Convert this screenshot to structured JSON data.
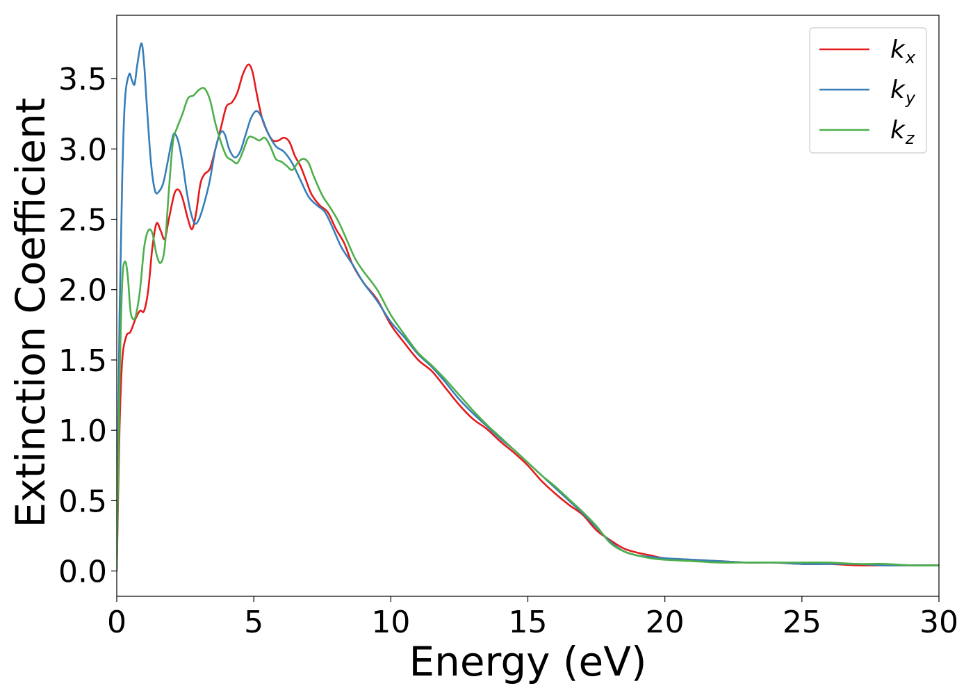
{
  "chart_data": {
    "type": "line",
    "title": "",
    "xlabel": "Energy (eV)",
    "ylabel": "Extinction Coefficient",
    "xlim": [
      0,
      30
    ],
    "ylim": [
      -0.18,
      3.95
    ],
    "xticks": [
      0,
      5,
      10,
      15,
      20,
      25,
      30
    ],
    "xtick_labels": [
      "0",
      "5",
      "10",
      "15",
      "20",
      "25",
      "30"
    ],
    "yticks": [
      0.0,
      0.5,
      1.0,
      1.5,
      2.0,
      2.5,
      3.0,
      3.5
    ],
    "ytick_labels": [
      "0.0",
      "0.5",
      "1.0",
      "1.5",
      "2.0",
      "2.5",
      "3.0",
      "3.5"
    ],
    "grid": false,
    "legend_position": "top-right",
    "series": [
      {
        "name": "k_x",
        "legend_main": "k",
        "legend_sub": "x",
        "color": "#e41a1c",
        "points": [
          [
            0,
            0
          ],
          [
            0.1,
            1.0
          ],
          [
            0.2,
            1.5
          ],
          [
            0.35,
            1.67
          ],
          [
            0.5,
            1.7
          ],
          [
            0.7,
            1.8
          ],
          [
            0.85,
            1.85
          ],
          [
            1.0,
            1.85
          ],
          [
            1.15,
            2.0
          ],
          [
            1.3,
            2.3
          ],
          [
            1.45,
            2.47
          ],
          [
            1.6,
            2.42
          ],
          [
            1.75,
            2.36
          ],
          [
            1.9,
            2.5
          ],
          [
            2.1,
            2.68
          ],
          [
            2.25,
            2.71
          ],
          [
            2.4,
            2.65
          ],
          [
            2.6,
            2.5
          ],
          [
            2.75,
            2.43
          ],
          [
            2.9,
            2.55
          ],
          [
            3.05,
            2.75
          ],
          [
            3.2,
            2.82
          ],
          [
            3.4,
            2.86
          ],
          [
            3.6,
            3.0
          ],
          [
            3.8,
            3.15
          ],
          [
            4.0,
            3.3
          ],
          [
            4.2,
            3.33
          ],
          [
            4.4,
            3.4
          ],
          [
            4.6,
            3.53
          ],
          [
            4.8,
            3.6
          ],
          [
            4.95,
            3.55
          ],
          [
            5.1,
            3.4
          ],
          [
            5.3,
            3.22
          ],
          [
            5.5,
            3.12
          ],
          [
            5.7,
            3.06
          ],
          [
            5.9,
            3.06
          ],
          [
            6.1,
            3.08
          ],
          [
            6.3,
            3.05
          ],
          [
            6.5,
            2.95
          ],
          [
            6.7,
            2.88
          ],
          [
            6.9,
            2.78
          ],
          [
            7.1,
            2.68
          ],
          [
            7.4,
            2.6
          ],
          [
            7.7,
            2.55
          ],
          [
            8.0,
            2.43
          ],
          [
            8.3,
            2.33
          ],
          [
            8.6,
            2.18
          ],
          [
            9.0,
            2.05
          ],
          [
            9.5,
            1.93
          ],
          [
            10.0,
            1.75
          ],
          [
            10.5,
            1.62
          ],
          [
            11.0,
            1.5
          ],
          [
            11.5,
            1.42
          ],
          [
            12.0,
            1.3
          ],
          [
            12.5,
            1.18
          ],
          [
            13.0,
            1.08
          ],
          [
            13.5,
            1.01
          ],
          [
            14.0,
            0.92
          ],
          [
            14.5,
            0.84
          ],
          [
            15.0,
            0.75
          ],
          [
            15.5,
            0.64
          ],
          [
            16.0,
            0.55
          ],
          [
            16.5,
            0.47
          ],
          [
            17.0,
            0.4
          ],
          [
            17.5,
            0.29
          ],
          [
            18.0,
            0.22
          ],
          [
            18.5,
            0.16
          ],
          [
            19.0,
            0.13
          ],
          [
            19.5,
            0.11
          ],
          [
            20.0,
            0.09
          ],
          [
            21.0,
            0.08
          ],
          [
            22.0,
            0.07
          ],
          [
            23.0,
            0.06
          ],
          [
            24.0,
            0.06
          ],
          [
            25.0,
            0.05
          ],
          [
            26.0,
            0.05
          ],
          [
            27.0,
            0.04
          ],
          [
            28.0,
            0.04
          ],
          [
            29.0,
            0.04
          ],
          [
            30.0,
            0.04
          ]
        ]
      },
      {
        "name": "k_y",
        "legend_main": "k",
        "legend_sub": "y",
        "color": "#377eb8",
        "points": [
          [
            0,
            0
          ],
          [
            0.1,
            1.8
          ],
          [
            0.2,
            2.8
          ],
          [
            0.3,
            3.35
          ],
          [
            0.45,
            3.53
          ],
          [
            0.55,
            3.49
          ],
          [
            0.65,
            3.46
          ],
          [
            0.75,
            3.6
          ],
          [
            0.9,
            3.75
          ],
          [
            1.0,
            3.6
          ],
          [
            1.1,
            3.3
          ],
          [
            1.25,
            2.9
          ],
          [
            1.4,
            2.7
          ],
          [
            1.55,
            2.7
          ],
          [
            1.7,
            2.76
          ],
          [
            1.85,
            2.9
          ],
          [
            2.0,
            3.05
          ],
          [
            2.1,
            3.11
          ],
          [
            2.25,
            3.05
          ],
          [
            2.4,
            2.9
          ],
          [
            2.55,
            2.7
          ],
          [
            2.7,
            2.55
          ],
          [
            2.85,
            2.47
          ],
          [
            3.0,
            2.5
          ],
          [
            3.2,
            2.62
          ],
          [
            3.4,
            2.78
          ],
          [
            3.6,
            3.0
          ],
          [
            3.8,
            3.12
          ],
          [
            3.95,
            3.1
          ],
          [
            4.1,
            3.0
          ],
          [
            4.3,
            2.94
          ],
          [
            4.5,
            2.98
          ],
          [
            4.7,
            3.1
          ],
          [
            4.9,
            3.22
          ],
          [
            5.1,
            3.27
          ],
          [
            5.3,
            3.22
          ],
          [
            5.5,
            3.12
          ],
          [
            5.8,
            3.02
          ],
          [
            6.1,
            2.98
          ],
          [
            6.4,
            2.9
          ],
          [
            6.7,
            2.78
          ],
          [
            7.0,
            2.66
          ],
          [
            7.3,
            2.6
          ],
          [
            7.6,
            2.55
          ],
          [
            7.9,
            2.43
          ],
          [
            8.2,
            2.3
          ],
          [
            8.6,
            2.18
          ],
          [
            9.0,
            2.05
          ],
          [
            9.5,
            1.92
          ],
          [
            10.0,
            1.77
          ],
          [
            10.5,
            1.66
          ],
          [
            11.0,
            1.54
          ],
          [
            11.5,
            1.45
          ],
          [
            12.0,
            1.34
          ],
          [
            12.5,
            1.22
          ],
          [
            13.0,
            1.12
          ],
          [
            13.5,
            1.03
          ],
          [
            14.0,
            0.94
          ],
          [
            14.5,
            0.86
          ],
          [
            15.0,
            0.77
          ],
          [
            15.5,
            0.68
          ],
          [
            16.0,
            0.59
          ],
          [
            16.5,
            0.5
          ],
          [
            17.0,
            0.41
          ],
          [
            17.5,
            0.31
          ],
          [
            18.0,
            0.21
          ],
          [
            18.5,
            0.14
          ],
          [
            19.0,
            0.11
          ],
          [
            19.5,
            0.1
          ],
          [
            20.0,
            0.09
          ],
          [
            21.0,
            0.08
          ],
          [
            22.0,
            0.07
          ],
          [
            23.0,
            0.06
          ],
          [
            24.0,
            0.06
          ],
          [
            25.0,
            0.05
          ],
          [
            26.0,
            0.05
          ],
          [
            27.0,
            0.05
          ],
          [
            28.0,
            0.04
          ],
          [
            29.0,
            0.04
          ],
          [
            30.0,
            0.04
          ]
        ]
      },
      {
        "name": "k_z",
        "legend_main": "k",
        "legend_sub": "z",
        "color": "#4daf4a",
        "points": [
          [
            0,
            0
          ],
          [
            0.1,
            1.3
          ],
          [
            0.2,
            2.05
          ],
          [
            0.3,
            2.2
          ],
          [
            0.4,
            2.1
          ],
          [
            0.5,
            1.85
          ],
          [
            0.6,
            1.79
          ],
          [
            0.7,
            1.82
          ],
          [
            0.85,
            2.0
          ],
          [
            1.0,
            2.3
          ],
          [
            1.15,
            2.42
          ],
          [
            1.3,
            2.4
          ],
          [
            1.45,
            2.25
          ],
          [
            1.6,
            2.19
          ],
          [
            1.75,
            2.3
          ],
          [
            1.9,
            2.7
          ],
          [
            2.05,
            3.05
          ],
          [
            2.2,
            3.15
          ],
          [
            2.4,
            3.25
          ],
          [
            2.6,
            3.36
          ],
          [
            2.8,
            3.38
          ],
          [
            3.0,
            3.42
          ],
          [
            3.2,
            3.43
          ],
          [
            3.4,
            3.35
          ],
          [
            3.6,
            3.18
          ],
          [
            3.8,
            3.05
          ],
          [
            4.0,
            2.95
          ],
          [
            4.2,
            2.92
          ],
          [
            4.4,
            2.9
          ],
          [
            4.6,
            2.98
          ],
          [
            4.8,
            3.08
          ],
          [
            5.0,
            3.08
          ],
          [
            5.2,
            3.06
          ],
          [
            5.4,
            3.08
          ],
          [
            5.6,
            3.02
          ],
          [
            5.8,
            2.93
          ],
          [
            6.0,
            2.91
          ],
          [
            6.2,
            2.88
          ],
          [
            6.4,
            2.85
          ],
          [
            6.6,
            2.9
          ],
          [
            6.8,
            2.93
          ],
          [
            7.0,
            2.9
          ],
          [
            7.2,
            2.8
          ],
          [
            7.5,
            2.67
          ],
          [
            7.8,
            2.58
          ],
          [
            8.1,
            2.48
          ],
          [
            8.4,
            2.35
          ],
          [
            8.7,
            2.22
          ],
          [
            9.0,
            2.13
          ],
          [
            9.5,
            2.0
          ],
          [
            10.0,
            1.82
          ],
          [
            10.5,
            1.68
          ],
          [
            11.0,
            1.55
          ],
          [
            11.5,
            1.46
          ],
          [
            12.0,
            1.36
          ],
          [
            12.5,
            1.25
          ],
          [
            13.0,
            1.14
          ],
          [
            13.5,
            1.04
          ],
          [
            14.0,
            0.95
          ],
          [
            14.5,
            0.86
          ],
          [
            15.0,
            0.77
          ],
          [
            15.5,
            0.68
          ],
          [
            16.0,
            0.6
          ],
          [
            16.5,
            0.51
          ],
          [
            17.0,
            0.42
          ],
          [
            17.5,
            0.32
          ],
          [
            18.0,
            0.2
          ],
          [
            18.5,
            0.14
          ],
          [
            19.0,
            0.11
          ],
          [
            19.5,
            0.09
          ],
          [
            20.0,
            0.08
          ],
          [
            21.0,
            0.07
          ],
          [
            22.0,
            0.06
          ],
          [
            23.0,
            0.06
          ],
          [
            24.0,
            0.06
          ],
          [
            25.0,
            0.06
          ],
          [
            26.0,
            0.06
          ],
          [
            27.0,
            0.05
          ],
          [
            28.0,
            0.05
          ],
          [
            29.0,
            0.04
          ],
          [
            30.0,
            0.04
          ]
        ]
      }
    ]
  }
}
